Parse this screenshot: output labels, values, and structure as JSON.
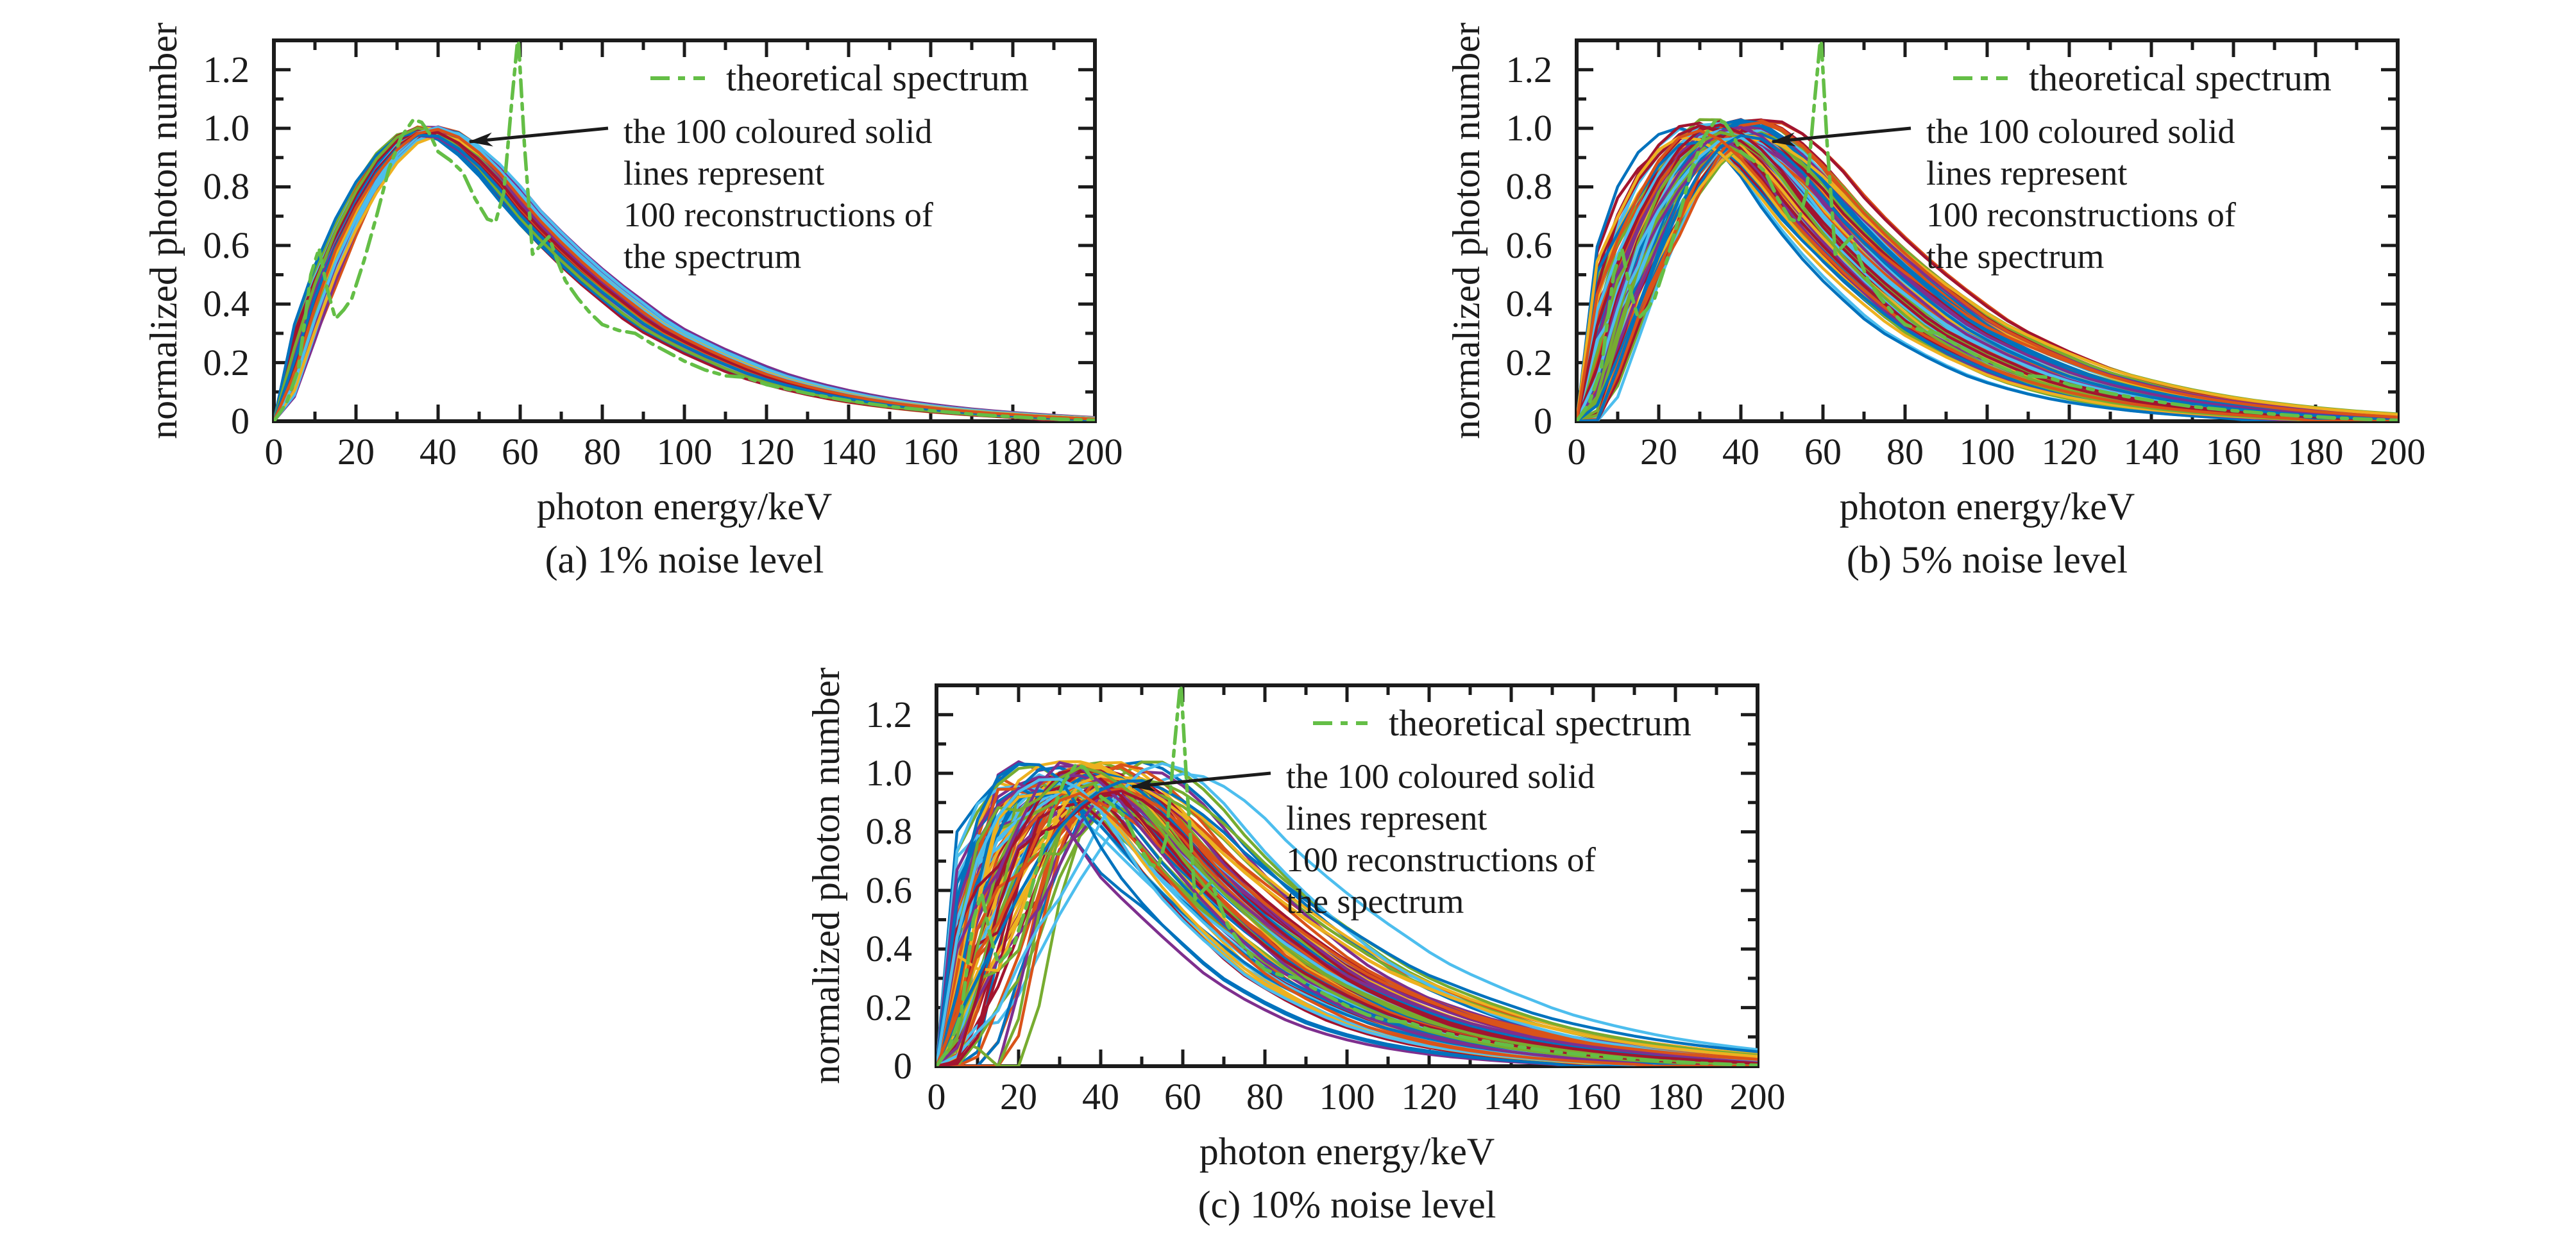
{
  "figure": {
    "background_color": "#ffffff",
    "text_color": "#1b1b1b",
    "axis_color": "#1b1b1b"
  },
  "chart_data": {
    "type": "line",
    "description": "Three panels comparing 100 reconstructed x-ray spectra against a theoretical spectrum at different noise levels",
    "x_units": "keV",
    "palette": [
      "#0072bd",
      "#d95319",
      "#edb120",
      "#7e2f8e",
      "#77ac30",
      "#4dbeee",
      "#a2142f"
    ],
    "theoretical_spectrum": {
      "label": "theoretical spectrum",
      "color": "#64be46",
      "style": "dash-dot",
      "x": [
        0,
        3,
        6,
        9,
        11,
        13,
        15,
        17,
        19,
        22,
        25,
        28,
        31,
        34,
        36,
        38,
        40,
        43,
        46,
        49,
        52,
        54,
        56,
        58,
        59.5,
        61,
        63,
        65,
        67,
        69,
        71,
        74,
        77,
        80,
        84,
        88,
        92,
        96,
        100,
        105,
        110,
        115,
        120,
        125,
        130,
        135,
        140,
        145,
        150,
        155,
        160,
        165,
        170,
        175,
        180,
        185,
        190,
        195,
        200
      ],
      "y": [
        0,
        0.06,
        0.18,
        0.5,
        0.59,
        0.45,
        0.35,
        0.38,
        0.42,
        0.55,
        0.7,
        0.86,
        0.97,
        1.03,
        1.02,
        0.98,
        0.92,
        0.89,
        0.85,
        0.76,
        0.69,
        0.68,
        0.78,
        1.1,
        1.32,
        0.95,
        0.57,
        0.6,
        0.63,
        0.55,
        0.48,
        0.42,
        0.37,
        0.33,
        0.31,
        0.3,
        0.265,
        0.235,
        0.205,
        0.175,
        0.155,
        0.15,
        0.125,
        0.11,
        0.095,
        0.082,
        0.07,
        0.06,
        0.05,
        0.043,
        0.036,
        0.03,
        0.024,
        0.019,
        0.015,
        0.011,
        0.008,
        0.005,
        0.003
      ]
    },
    "mean_reconstruction": {
      "x_step": 5,
      "x_max": 200,
      "y": [
        0,
        0.2,
        0.42,
        0.6,
        0.74,
        0.86,
        0.945,
        0.995,
        0.995,
        0.955,
        0.895,
        0.82,
        0.73,
        0.655,
        0.585,
        0.52,
        0.46,
        0.405,
        0.35,
        0.305,
        0.27,
        0.235,
        0.205,
        0.175,
        0.15,
        0.13,
        0.112,
        0.096,
        0.082,
        0.07,
        0.06,
        0.051,
        0.043,
        0.036,
        0.03,
        0.025,
        0.02,
        0.016,
        0.012,
        0.008,
        0.005
      ]
    },
    "panels": [
      {
        "caption": "(a) 1% noise level",
        "noise_level": "1%",
        "xlabel": "photon energy/keV",
        "ylabel": "normalized photon number",
        "xlim": [
          0,
          200
        ],
        "ylim": [
          0,
          1.3
        ],
        "xtick_labels": [
          "0",
          "20",
          "40",
          "60",
          "80",
          "100",
          "120",
          "140",
          "160",
          "180",
          "200"
        ],
        "ytick_labels": [
          "0",
          "0.2",
          "0.4",
          "0.6",
          "0.8",
          "1.0",
          "1.2"
        ],
        "minor_x_step": 10,
        "minor_y_step": 0.1,
        "legend": [
          {
            "label": "theoretical spectrum"
          }
        ],
        "annotation": "the 100 coloured solid\nlines represent\n100 reconstructions of\nthe spectrum",
        "n_reconstructions": 100,
        "reconstruction_spread": {
          "seed": 7,
          "shift_sigma": 1.3,
          "scale_sigma": 0.022,
          "rise_jitter": 0.02,
          "tail_jitter": 0.035,
          "peak_min": 0.975,
          "peak_max": 1.005
        }
      },
      {
        "caption": "(b) 5% noise level",
        "noise_level": "5%",
        "xlabel": "photon energy/keV",
        "ylabel": "normalized photon number",
        "xlim": [
          0,
          200
        ],
        "ylim": [
          0,
          1.3
        ],
        "xtick_labels": [
          "0",
          "20",
          "40",
          "60",
          "80",
          "100",
          "120",
          "140",
          "160",
          "180",
          "200"
        ],
        "ytick_labels": [
          "0",
          "0.2",
          "0.4",
          "0.6",
          "0.8",
          "1.0",
          "1.2"
        ],
        "minor_x_step": 10,
        "minor_y_step": 0.1,
        "legend": [
          {
            "label": "theoretical spectrum"
          }
        ],
        "annotation": "the 100 coloured solid\nlines represent\n100 reconstructions of\nthe spectrum",
        "n_reconstructions": 100,
        "reconstruction_spread": {
          "seed": 13,
          "shift_sigma": 3.8,
          "scale_sigma": 0.065,
          "rise_jitter": 0.09,
          "tail_jitter": 0.09,
          "peak_min": 0.95,
          "peak_max": 1.03
        }
      },
      {
        "caption": "(c) 10% noise level",
        "noise_level": "10%",
        "xlabel": "photon energy/keV",
        "ylabel": "normalized photon number",
        "xlim": [
          0,
          200
        ],
        "ylim": [
          0,
          1.3
        ],
        "xtick_labels": [
          "0",
          "20",
          "40",
          "60",
          "80",
          "100",
          "120",
          "140",
          "160",
          "180",
          "200"
        ],
        "ytick_labels": [
          "0",
          "0.2",
          "0.4",
          "0.6",
          "0.8",
          "1.0",
          "1.2"
        ],
        "minor_x_step": 10,
        "minor_y_step": 0.1,
        "legend": [
          {
            "label": "theoretical spectrum"
          }
        ],
        "annotation": "the 100 coloured solid\nlines represent\n100 reconstructions of\nthe spectrum",
        "n_reconstructions": 100,
        "reconstruction_spread": {
          "seed": 29,
          "shift_sigma": 7.5,
          "scale_sigma": 0.12,
          "rise_jitter": 0.24,
          "tail_jitter": 0.15,
          "peak_min": 0.93,
          "peak_max": 1.04
        }
      }
    ]
  }
}
